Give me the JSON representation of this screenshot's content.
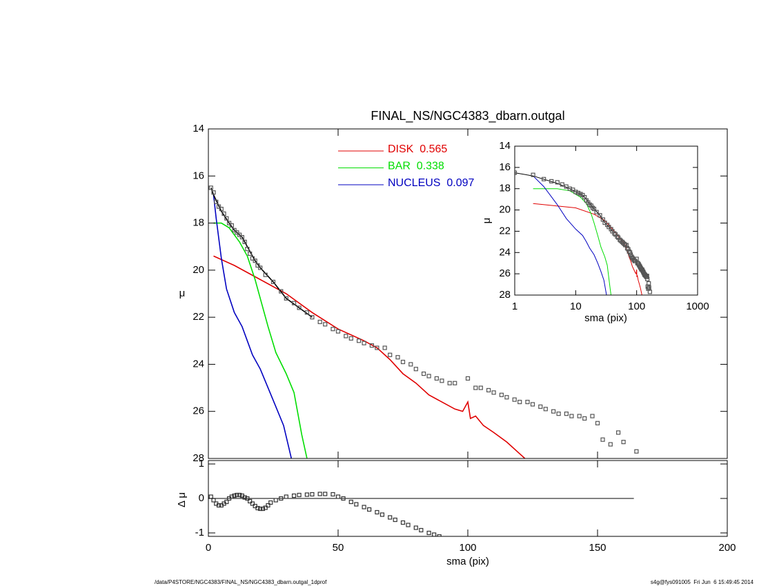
{
  "chart_data": [
    {
      "type": "line",
      "title": "FINAL_NS/NGC4383_dbarn.outgal",
      "ylabel": "μ",
      "xlim": [
        0,
        200
      ],
      "xticks": [
        0,
        50,
        100,
        150,
        200
      ],
      "ylim": [
        28,
        14
      ],
      "yticks": [
        14,
        16,
        18,
        20,
        22,
        24,
        26,
        28
      ],
      "legend": "top",
      "series": [
        {
          "name": "DISK  0.565",
          "color": "#e00000",
          "x": [
            2,
            10,
            20,
            30,
            40,
            50,
            60,
            65,
            70,
            75,
            80,
            85,
            90,
            95,
            98,
            100,
            101,
            103,
            106,
            110,
            115,
            120,
            122
          ],
          "values": [
            19.4,
            19.8,
            20.4,
            21.0,
            21.8,
            22.5,
            23.0,
            23.3,
            23.8,
            24.4,
            24.8,
            25.3,
            25.6,
            25.9,
            26.0,
            25.6,
            26.3,
            26.2,
            26.6,
            26.9,
            27.3,
            27.8,
            28.0
          ]
        },
        {
          "name": "BAR  0.338",
          "color": "#00dd00",
          "x": [
            2,
            5,
            8,
            12,
            15,
            18,
            20,
            23,
            26,
            30,
            33,
            36,
            38
          ],
          "values": [
            18.0,
            18.0,
            18.2,
            18.8,
            19.4,
            20.4,
            21.2,
            22.4,
            23.5,
            24.4,
            25.2,
            27.0,
            28.0
          ]
        },
        {
          "name": "NUCLEUS  0.097",
          "color": "#0000c0",
          "x": [
            2,
            3,
            5,
            7,
            10,
            13,
            15,
            17,
            20,
            23,
            26,
            29,
            32
          ],
          "values": [
            16.8,
            17.8,
            19.5,
            20.8,
            21.8,
            22.4,
            23.0,
            23.6,
            24.2,
            25.0,
            25.8,
            26.6,
            28.0
          ]
        },
        {
          "color": "#000000",
          "x": [
            1,
            2,
            5,
            8,
            10,
            13,
            15,
            18,
            20,
            25,
            30,
            35,
            40
          ],
          "values": [
            16.5,
            16.8,
            17.5,
            18.0,
            18.3,
            18.6,
            19.0,
            19.6,
            19.9,
            20.5,
            21.2,
            21.6,
            22.0
          ]
        },
        {
          "marker": "square",
          "color": "#555555",
          "x": [
            1,
            2,
            3,
            4,
            5,
            6,
            7,
            8,
            9,
            10,
            11,
            12,
            13,
            14,
            15,
            16,
            17,
            18,
            19,
            20,
            22,
            25,
            28,
            30,
            33,
            35,
            38,
            40,
            43,
            45,
            48,
            50,
            53,
            55,
            58,
            60,
            63,
            65,
            68,
            70,
            73,
            75,
            78,
            80,
            83,
            85,
            88,
            90,
            93,
            95,
            100,
            103,
            105,
            108,
            110,
            113,
            115,
            118,
            120,
            123,
            125,
            128,
            130,
            133,
            135,
            138,
            140,
            143,
            145,
            148,
            150,
            152,
            155,
            158,
            160,
            165
          ],
          "values": [
            16.5,
            16.7,
            17.1,
            17.3,
            17.4,
            17.6,
            17.8,
            18.0,
            18.1,
            18.3,
            18.4,
            18.5,
            18.6,
            18.8,
            19.1,
            19.3,
            19.5,
            19.6,
            19.8,
            19.9,
            20.2,
            20.5,
            20.9,
            21.2,
            21.4,
            21.6,
            21.8,
            22.0,
            22.2,
            22.3,
            22.5,
            22.6,
            22.8,
            22.9,
            23.0,
            23.1,
            23.2,
            23.3,
            23.3,
            23.6,
            23.7,
            23.9,
            24.0,
            24.2,
            24.4,
            24.5,
            24.6,
            24.7,
            24.8,
            24.8,
            24.6,
            25.0,
            25.0,
            25.1,
            25.2,
            25.3,
            25.4,
            25.5,
            25.6,
            25.6,
            25.7,
            25.8,
            25.9,
            26.0,
            26.1,
            26.1,
            26.2,
            26.2,
            26.3,
            26.2,
            26.5,
            27.2,
            27.4,
            26.9,
            27.3,
            27.7
          ]
        }
      ]
    },
    {
      "type": "scatter",
      "xlabel": "sma (pix)",
      "ylabel": "Δ μ",
      "xlim": [
        0,
        200
      ],
      "xticks": [
        0,
        50,
        100,
        150,
        200
      ],
      "ylim": [
        -1.1,
        1.1
      ],
      "yticks": [
        -1,
        0,
        1
      ],
      "reference_line": {
        "value": 0,
        "x": [
          0,
          164
        ]
      },
      "series": [
        {
          "marker": "square",
          "color": "#333333",
          "x": [
            1,
            2,
            3,
            4,
            5,
            6,
            7,
            8,
            9,
            10,
            11,
            12,
            13,
            14,
            15,
            16,
            17,
            18,
            19,
            20,
            21,
            22,
            23,
            24,
            26,
            28,
            30,
            33,
            35,
            38,
            40,
            43,
            45,
            48,
            50,
            52,
            55,
            57,
            60,
            62,
            65,
            67,
            70,
            72,
            75,
            77,
            80,
            82,
            85,
            87,
            89
          ],
          "values": [
            0.05,
            -0.05,
            -0.15,
            -0.2,
            -0.2,
            -0.15,
            -0.1,
            0.0,
            0.05,
            0.08,
            0.1,
            0.1,
            0.08,
            0.03,
            0.0,
            -0.08,
            -0.15,
            -0.22,
            -0.28,
            -0.3,
            -0.3,
            -0.27,
            -0.2,
            -0.12,
            -0.05,
            0.0,
            0.05,
            0.08,
            0.1,
            0.11,
            0.12,
            0.13,
            0.13,
            0.12,
            0.05,
            0.0,
            -0.1,
            -0.17,
            -0.25,
            -0.32,
            -0.4,
            -0.47,
            -0.55,
            -0.62,
            -0.7,
            -0.77,
            -0.85,
            -0.92,
            -1.0,
            -1.05,
            -1.1
          ]
        }
      ]
    },
    {
      "type": "line",
      "xlabel": "sma (pix)",
      "ylabel": "μ",
      "log_x": true,
      "xlim": [
        1,
        1000
      ],
      "xticks": [
        1,
        10,
        100,
        1000
      ],
      "ylim": [
        28,
        14
      ],
      "yticks": [
        14,
        16,
        18,
        20,
        22,
        24,
        26,
        28
      ]
    }
  ],
  "footer": {
    "left": "/data/P4STORE/NGC4383/FINAL_NS/NGC4383_dbarn.outgal_1dprof",
    "right": "s4g@fys091005  Fri Jun  6 15:49:45 2014"
  }
}
